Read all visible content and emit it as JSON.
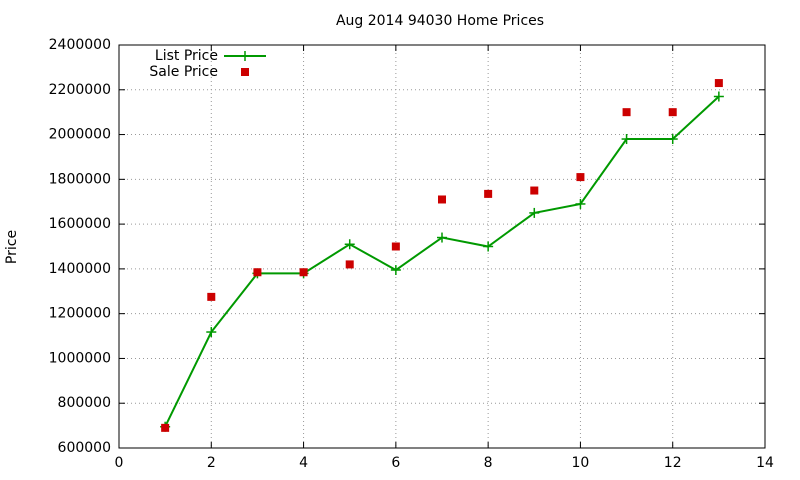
{
  "chart_data": {
    "type": "line",
    "title": "Aug 2014 94030 Home Prices",
    "y_label": "Price",
    "x": [
      1,
      2,
      3,
      4,
      5,
      6,
      7,
      8,
      9,
      10,
      11,
      12,
      13
    ],
    "series": [
      {
        "name": "List Price",
        "color": "#009900",
        "style": "linespoints",
        "values": [
          695000,
          1118000,
          1380000,
          1380000,
          1510000,
          1395000,
          1540000,
          1500000,
          1650000,
          1690000,
          1980000,
          1980000,
          2170000
        ]
      },
      {
        "name": "Sale Price",
        "color": "#cc0000",
        "style": "points",
        "values": [
          690000,
          1275000,
          1385000,
          1385000,
          1420000,
          1500000,
          1710000,
          1735000,
          1750000,
          1810000,
          2100000,
          2100000,
          2230000
        ]
      }
    ],
    "xlim": [
      0,
      14
    ],
    "xticks": [
      0,
      2,
      4,
      6,
      8,
      10,
      12,
      14
    ],
    "ylim": [
      600000,
      2400000
    ],
    "yticks": [
      600000,
      800000,
      1000000,
      1200000,
      1400000,
      1600000,
      1800000,
      2000000,
      2200000,
      2400000
    ],
    "grid": true,
    "legend": "top-left"
  }
}
